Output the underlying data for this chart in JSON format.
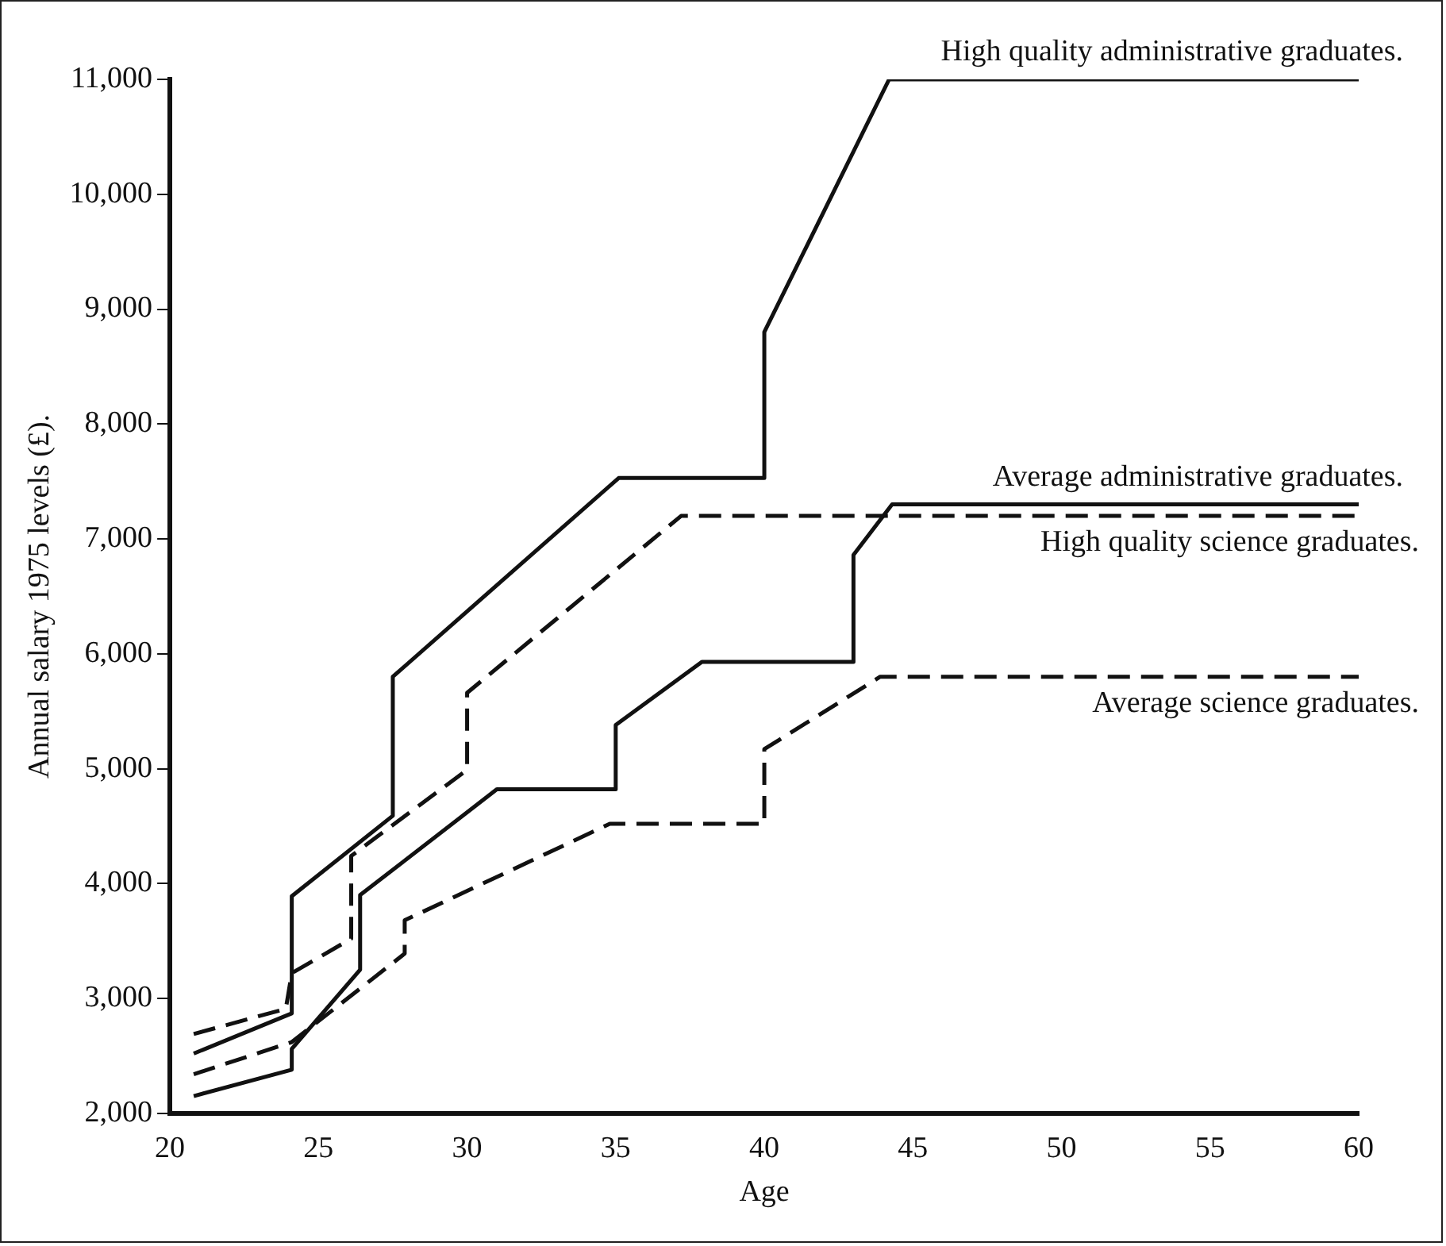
{
  "chart_data": {
    "type": "line",
    "xlabel": "Age",
    "ylabel": "Annual salary 1975 levels (£).",
    "xlim": [
      20,
      60
    ],
    "xticks": [
      20,
      25,
      30,
      35,
      40,
      45,
      50,
      55,
      60
    ],
    "ylim": [
      2000,
      11000
    ],
    "yticks": [
      {
        "value": 2000,
        "label": "2,000"
      },
      {
        "value": 3000,
        "label": "3,000"
      },
      {
        "value": 4000,
        "label": "4,000"
      },
      {
        "value": 5000,
        "label": "5,000"
      },
      {
        "value": 6000,
        "label": "6,000"
      },
      {
        "value": 7000,
        "label": "7,000"
      },
      {
        "value": 8000,
        "label": "8,000"
      },
      {
        "value": 9000,
        "label": "9,000"
      },
      {
        "value": 10000,
        "label": "10,000"
      },
      {
        "value": 11000,
        "label": "11,000"
      }
    ],
    "grid": false,
    "legend": false,
    "marker": "none",
    "series": [
      {
        "name": "High quality administrative graduates.",
        "color": "#111111",
        "line_style": "solid",
        "x": [
          20.8,
          24.1,
          24.1,
          27.5,
          27.5,
          35.1,
          40,
          40,
          44.2,
          60
        ],
        "values": [
          2520,
          2870,
          3890,
          4590,
          5800,
          7530,
          7530,
          8800,
          11000,
          11000
        ]
      },
      {
        "name": "Average administrative graduates.",
        "color": "#111111",
        "line_style": "solid",
        "x": [
          20.8,
          24.1,
          24.1,
          26.4,
          26.4,
          31,
          35,
          35,
          37.9,
          43,
          43,
          44.3,
          60
        ],
        "values": [
          2150,
          2380,
          2560,
          3250,
          3900,
          4820,
          4820,
          5380,
          5930,
          5930,
          6860,
          7300,
          7300
        ]
      },
      {
        "name": "High quality science graduates.",
        "color": "#111111",
        "line_style": "dashed",
        "x": [
          20.8,
          23.9,
          24.1,
          26.1,
          26.1,
          30,
          30,
          37.2,
          60
        ],
        "values": [
          2690,
          2910,
          3220,
          3520,
          4240,
          4990,
          5660,
          7200,
          7200
        ]
      },
      {
        "name": "Average science graduates.",
        "color": "#111111",
        "line_style": "dashed",
        "x": [
          20.8,
          24.1,
          27.9,
          27.9,
          34.8,
          40,
          40,
          43.9,
          60
        ],
        "values": [
          2340,
          2620,
          3390,
          3680,
          4520,
          4520,
          5170,
          5800,
          5800
        ]
      }
    ]
  }
}
